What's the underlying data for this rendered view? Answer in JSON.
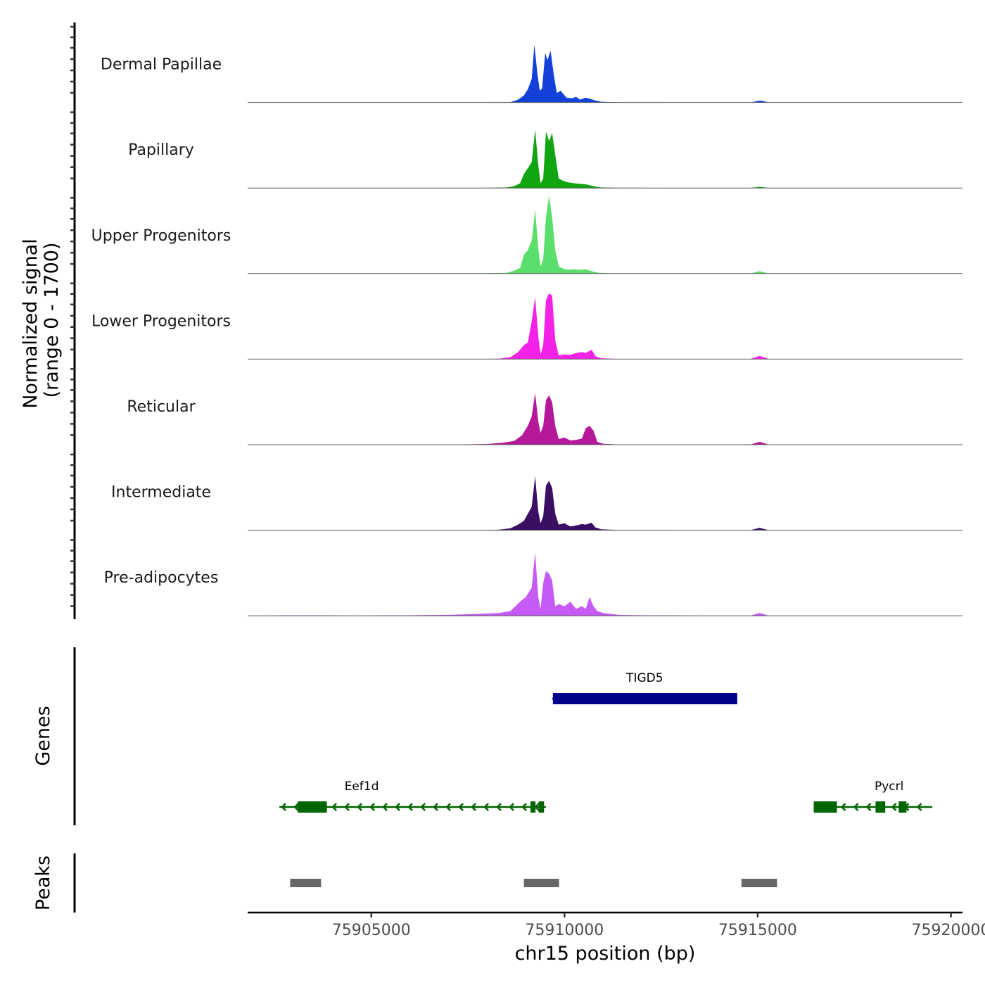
{
  "chart_data": {
    "type": "area",
    "title": "",
    "ylabel": "Normalized signal",
    "ylabel_range": "(range 0 - 1700)",
    "ylim": [
      0,
      1700
    ],
    "xlabel": "chr15 position (bp)",
    "xlim": [
      75901800,
      75920300
    ],
    "x_ticks": [
      75905000,
      75910000,
      75915000,
      75920000
    ],
    "x_tick_labels": [
      "75905000",
      "75910000",
      "75915000",
      "75920000"
    ],
    "tracks": [
      {
        "name": "Dermal Papillae",
        "color": "#1240D8",
        "points": [
          [
            75901800,
            0
          ],
          [
            75907500,
            0
          ],
          [
            75908600,
            5
          ],
          [
            75908800,
            60
          ],
          [
            75908950,
            150
          ],
          [
            75909050,
            280
          ],
          [
            75909150,
            500
          ],
          [
            75909220,
            1230
          ],
          [
            75909300,
            600
          ],
          [
            75909360,
            250
          ],
          [
            75909420,
            300
          ],
          [
            75909500,
            1050
          ],
          [
            75909560,
            900
          ],
          [
            75909640,
            1100
          ],
          [
            75909720,
            600
          ],
          [
            75909800,
            200
          ],
          [
            75909900,
            250
          ],
          [
            75910050,
            100
          ],
          [
            75910200,
            90
          ],
          [
            75910300,
            120
          ],
          [
            75910400,
            60
          ],
          [
            75910550,
            100
          ],
          [
            75910650,
            80
          ],
          [
            75910800,
            40
          ],
          [
            75910950,
            15
          ],
          [
            75911300,
            5
          ],
          [
            75914800,
            0
          ],
          [
            75915070,
            40
          ],
          [
            75915300,
            0
          ],
          [
            75920300,
            0
          ]
        ]
      },
      {
        "name": "Papillary",
        "color": "#11A511",
        "points": [
          [
            75901800,
            0
          ],
          [
            75907500,
            0
          ],
          [
            75908500,
            10
          ],
          [
            75908700,
            40
          ],
          [
            75908850,
            100
          ],
          [
            75908950,
            300
          ],
          [
            75909050,
            420
          ],
          [
            75909150,
            550
          ],
          [
            75909240,
            1240
          ],
          [
            75909320,
            500
          ],
          [
            75909380,
            100
          ],
          [
            75909450,
            200
          ],
          [
            75909520,
            1200
          ],
          [
            75909600,
            1000
          ],
          [
            75909680,
            1170
          ],
          [
            75909760,
            700
          ],
          [
            75909850,
            200
          ],
          [
            75909980,
            150
          ],
          [
            75910100,
            120
          ],
          [
            75910250,
            100
          ],
          [
            75910400,
            90
          ],
          [
            75910550,
            80
          ],
          [
            75910750,
            40
          ],
          [
            75910900,
            15
          ],
          [
            75911300,
            5
          ],
          [
            75914800,
            0
          ],
          [
            75915050,
            25
          ],
          [
            75915300,
            0
          ],
          [
            75920300,
            0
          ]
        ]
      },
      {
        "name": "Upper Progenitors",
        "color": "#5BDF6C",
        "points": [
          [
            75901800,
            0
          ],
          [
            75907500,
            0
          ],
          [
            75908500,
            15
          ],
          [
            75908700,
            60
          ],
          [
            75908850,
            120
          ],
          [
            75908950,
            400
          ],
          [
            75909050,
            500
          ],
          [
            75909150,
            700
          ],
          [
            75909240,
            1360
          ],
          [
            75909320,
            550
          ],
          [
            75909380,
            150
          ],
          [
            75909450,
            300
          ],
          [
            75909520,
            1200
          ],
          [
            75909600,
            1650
          ],
          [
            75909680,
            1200
          ],
          [
            75909760,
            500
          ],
          [
            75909850,
            150
          ],
          [
            75909980,
            100
          ],
          [
            75910100,
            80
          ],
          [
            75910250,
            90
          ],
          [
            75910400,
            80
          ],
          [
            75910550,
            90
          ],
          [
            75910750,
            40
          ],
          [
            75910900,
            15
          ],
          [
            75911300,
            5
          ],
          [
            75914800,
            0
          ],
          [
            75915050,
            50
          ],
          [
            75915300,
            0
          ],
          [
            75920300,
            0
          ]
        ]
      },
      {
        "name": "Lower Progenitors",
        "color": "#F421E6",
        "points": [
          [
            75901800,
            0
          ],
          [
            75907500,
            0
          ],
          [
            75908300,
            10
          ],
          [
            75908600,
            40
          ],
          [
            75908800,
            150
          ],
          [
            75908950,
            300
          ],
          [
            75909050,
            350
          ],
          [
            75909150,
            800
          ],
          [
            75909240,
            1320
          ],
          [
            75909320,
            500
          ],
          [
            75909380,
            100
          ],
          [
            75909450,
            300
          ],
          [
            75909520,
            1250
          ],
          [
            75909600,
            1400
          ],
          [
            75909680,
            1350
          ],
          [
            75909760,
            400
          ],
          [
            75909850,
            80
          ],
          [
            75910000,
            100
          ],
          [
            75910150,
            90
          ],
          [
            75910300,
            130
          ],
          [
            75910450,
            150
          ],
          [
            75910550,
            130
          ],
          [
            75910700,
            200
          ],
          [
            75910800,
            60
          ],
          [
            75910950,
            20
          ],
          [
            75911400,
            5
          ],
          [
            75914800,
            0
          ],
          [
            75915050,
            70
          ],
          [
            75915300,
            0
          ],
          [
            75920300,
            0
          ]
        ]
      },
      {
        "name": "Reticular",
        "color": "#B6189C",
        "points": [
          [
            75901800,
            0
          ],
          [
            75907000,
            0
          ],
          [
            75908000,
            15
          ],
          [
            75908400,
            40
          ],
          [
            75908700,
            80
          ],
          [
            75908900,
            200
          ],
          [
            75909050,
            400
          ],
          [
            75909150,
            600
          ],
          [
            75909240,
            1100
          ],
          [
            75909320,
            500
          ],
          [
            75909380,
            250
          ],
          [
            75909450,
            400
          ],
          [
            75909520,
            950
          ],
          [
            75909600,
            1050
          ],
          [
            75909680,
            900
          ],
          [
            75909760,
            400
          ],
          [
            75909850,
            120
          ],
          [
            75910000,
            150
          ],
          [
            75910150,
            90
          ],
          [
            75910300,
            100
          ],
          [
            75910450,
            130
          ],
          [
            75910550,
            350
          ],
          [
            75910650,
            400
          ],
          [
            75910750,
            300
          ],
          [
            75910850,
            60
          ],
          [
            75911000,
            20
          ],
          [
            75911400,
            5
          ],
          [
            75914800,
            0
          ],
          [
            75915050,
            60
          ],
          [
            75915300,
            0
          ],
          [
            75920300,
            0
          ]
        ]
      },
      {
        "name": "Intermediate",
        "color": "#3A0E63",
        "points": [
          [
            75901800,
            0
          ],
          [
            75907500,
            0
          ],
          [
            75908300,
            10
          ],
          [
            75908600,
            40
          ],
          [
            75908800,
            120
          ],
          [
            75908950,
            200
          ],
          [
            75909050,
            350
          ],
          [
            75909150,
            500
          ],
          [
            75909240,
            1150
          ],
          [
            75909320,
            400
          ],
          [
            75909380,
            150
          ],
          [
            75909450,
            300
          ],
          [
            75909520,
            950
          ],
          [
            75909600,
            1050
          ],
          [
            75909680,
            900
          ],
          [
            75909760,
            350
          ],
          [
            75909850,
            120
          ],
          [
            75910000,
            150
          ],
          [
            75910150,
            80
          ],
          [
            75910300,
            100
          ],
          [
            75910450,
            130
          ],
          [
            75910550,
            120
          ],
          [
            75910700,
            160
          ],
          [
            75910800,
            60
          ],
          [
            75910950,
            20
          ],
          [
            75911400,
            5
          ],
          [
            75914800,
            0
          ],
          [
            75915050,
            50
          ],
          [
            75915300,
            0
          ],
          [
            75920300,
            0
          ]
        ]
      },
      {
        "name": "Pre-adipocytes",
        "color": "#C55BF4",
        "points": [
          [
            75901800,
            0
          ],
          [
            75903000,
            10
          ],
          [
            75904500,
            5
          ],
          [
            75906000,
            10
          ],
          [
            75907000,
            20
          ],
          [
            75907800,
            40
          ],
          [
            75908300,
            60
          ],
          [
            75908600,
            100
          ],
          [
            75908850,
            300
          ],
          [
            75909000,
            400
          ],
          [
            75909150,
            600
          ],
          [
            75909240,
            1350
          ],
          [
            75909320,
            400
          ],
          [
            75909380,
            150
          ],
          [
            75909450,
            700
          ],
          [
            75909520,
            950
          ],
          [
            75909600,
            900
          ],
          [
            75909680,
            750
          ],
          [
            75909760,
            200
          ],
          [
            75909850,
            250
          ],
          [
            75910000,
            200
          ],
          [
            75910150,
            300
          ],
          [
            75910300,
            150
          ],
          [
            75910450,
            200
          ],
          [
            75910550,
            150
          ],
          [
            75910650,
            400
          ],
          [
            75910750,
            200
          ],
          [
            75910850,
            100
          ],
          [
            75911000,
            60
          ],
          [
            75911400,
            20
          ],
          [
            75912000,
            10
          ],
          [
            75914800,
            0
          ],
          [
            75915050,
            60
          ],
          [
            75915300,
            0
          ],
          [
            75920300,
            0
          ]
        ]
      }
    ],
    "genes_label": "Genes",
    "genes": [
      {
        "name": "TIGD5",
        "strand": "-",
        "color": "#00008B",
        "start": 75909680,
        "end": 75914470,
        "exons": [
          [
            75909700,
            75914470
          ]
        ]
      },
      {
        "name": "Eef1d",
        "strand": "-",
        "color": "#006400",
        "start": 75902620,
        "end": 75909520,
        "exons": [
          [
            75903100,
            75903850
          ],
          [
            75909120,
            75909250
          ],
          [
            75909330,
            75909470
          ]
        ]
      },
      {
        "name": "Pycrl",
        "strand": "-",
        "color": "#006400",
        "start": 75916450,
        "end": 75919520,
        "exons": [
          [
            75916450,
            75917050
          ],
          [
            75918050,
            75918300
          ],
          [
            75918650,
            75918850
          ]
        ]
      }
    ],
    "peaks_label": "Peaks",
    "peaks_color": "#666666",
    "peaks": [
      [
        75902900,
        75903700
      ],
      [
        75908950,
        75909860
      ],
      [
        75914580,
        75915500
      ]
    ]
  }
}
